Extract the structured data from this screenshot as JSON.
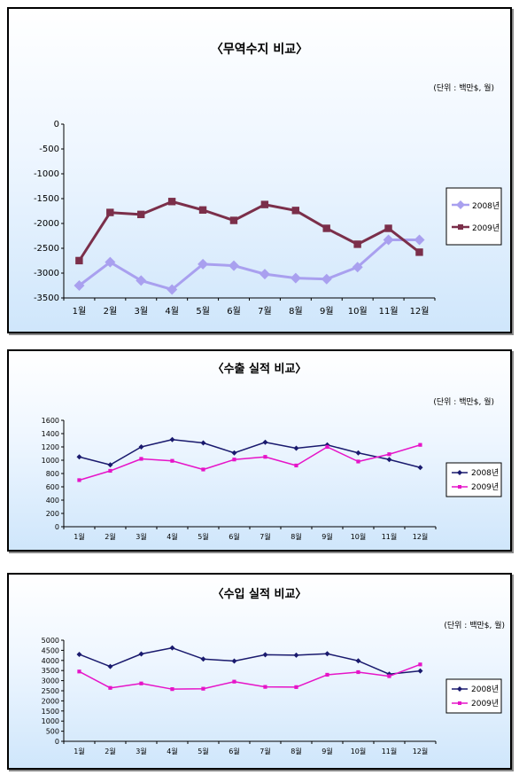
{
  "months": [
    "1월",
    "2월",
    "3월",
    "4월",
    "5월",
    "6월",
    "7월",
    "8월",
    "9월",
    "10월",
    "11월",
    "12월"
  ],
  "colors": {
    "s2008_top": "#a9a0ef",
    "s2009_top": "#7b2f4a",
    "s2008": "#1a1a6e",
    "s2009": "#e614c8"
  },
  "chart_data": [
    {
      "type": "line",
      "title": "〈무역수지 비교〉",
      "unit_label": "(단위 : 백만$, 월)",
      "categories": [
        "1월",
        "2월",
        "3월",
        "4월",
        "5월",
        "6월",
        "7월",
        "8월",
        "9월",
        "10월",
        "11월",
        "12월"
      ],
      "ylim": [
        -3500,
        0
      ],
      "yticks": [
        0,
        -500,
        -1000,
        -1500,
        -2000,
        -2500,
        -3000,
        -3500
      ],
      "legend_position": "right",
      "series": [
        {
          "name": "2008년",
          "values": [
            -3250,
            -2780,
            -3150,
            -3330,
            -2820,
            -2850,
            -3020,
            -3100,
            -3120,
            -2880,
            -2330,
            -2330
          ]
        },
        {
          "name": "2009년",
          "values": [
            -2750,
            -1780,
            -1820,
            -1560,
            -1730,
            -1940,
            -1620,
            -1740,
            -2100,
            -2420,
            -2100,
            -2580
          ]
        }
      ]
    },
    {
      "type": "line",
      "title": "〈수출 실적 비교〉",
      "unit_label": "(단위 : 백만$, 월)",
      "categories": [
        "1월",
        "2월",
        "3월",
        "4월",
        "5월",
        "6월",
        "7월",
        "8월",
        "9월",
        "10월",
        "11월",
        "12월"
      ],
      "ylim": [
        0,
        1600
      ],
      "yticks": [
        0,
        200,
        400,
        600,
        800,
        1000,
        1200,
        1400,
        1600
      ],
      "legend_position": "right",
      "series": [
        {
          "name": "2008년",
          "values": [
            1050,
            930,
            1200,
            1310,
            1260,
            1110,
            1270,
            1180,
            1230,
            1110,
            1010,
            890
          ]
        },
        {
          "name": "2009년",
          "values": [
            700,
            840,
            1020,
            990,
            860,
            1010,
            1050,
            920,
            1200,
            980,
            1090,
            1230
          ]
        }
      ]
    },
    {
      "type": "line",
      "title": "〈수입 실적 비교〉",
      "unit_label": "(단위 : 백만$, 월)",
      "categories": [
        "1월",
        "2월",
        "3월",
        "4월",
        "5월",
        "6월",
        "7월",
        "8월",
        "9월",
        "10월",
        "11월",
        "12월"
      ],
      "ylim": [
        0,
        5000
      ],
      "yticks": [
        0,
        500,
        1000,
        1500,
        2000,
        2500,
        3000,
        3500,
        4000,
        4500,
        5000
      ],
      "legend_position": "right",
      "series": [
        {
          "name": "2008년",
          "values": [
            4300,
            3700,
            4320,
            4620,
            4070,
            3970,
            4280,
            4260,
            4330,
            3980,
            3320,
            3480
          ]
        },
        {
          "name": "2009년",
          "values": [
            3450,
            2640,
            2860,
            2580,
            2600,
            2950,
            2690,
            2680,
            3290,
            3420,
            3220,
            3800
          ]
        }
      ]
    }
  ]
}
